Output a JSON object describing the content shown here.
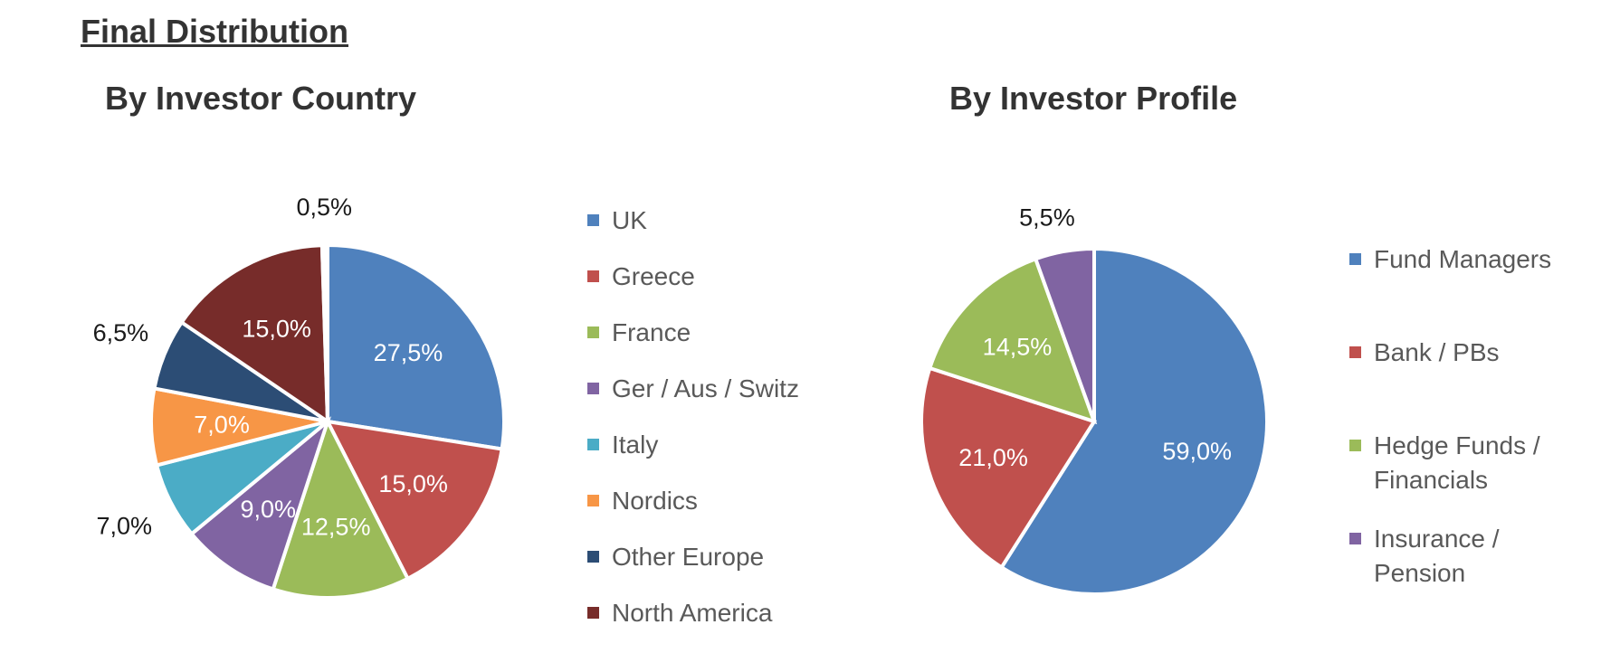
{
  "page": {
    "title": "Final Distribution"
  },
  "chart_data": [
    {
      "type": "pie",
      "title": "By Investor Country",
      "categories": [
        "UK",
        "Greece",
        "France",
        "Ger / Aus / Switz",
        "Italy",
        "Nordics",
        "Other Europe",
        "North America",
        ""
      ],
      "values": [
        27.5,
        15.0,
        12.5,
        9.0,
        7.0,
        7.0,
        6.5,
        15.0,
        0.5
      ],
      "labels": [
        "27,5%",
        "15,0%",
        "12,5%",
        "9,0%",
        "7,0%",
        "7,0%",
        "6,5%",
        "15,0%",
        "0,5%"
      ],
      "colors": [
        "#4F81BD",
        "#C0504D",
        "#9BBB59",
        "#8064A2",
        "#4BACC6",
        "#F79646",
        "#2C4D75",
        "#772C2A",
        "#FFFFFF"
      ],
      "legend": [
        "UK",
        "Greece",
        "France",
        "Ger / Aus / Switz",
        "Italy",
        "Nordics",
        "Other Europe",
        "North America"
      ],
      "legend_position": "right"
    },
    {
      "type": "pie",
      "title": "By Investor Profile",
      "categories": [
        "Fund Managers",
        "Bank / PBs",
        "Hedge Funds / Financials",
        "Insurance / Pension"
      ],
      "values": [
        59.0,
        21.0,
        14.5,
        5.5
      ],
      "labels": [
        "59,0%",
        "21,0%",
        "14,5%",
        "5,5%"
      ],
      "colors": [
        "#4F81BD",
        "#C0504D",
        "#9BBB59",
        "#8064A2"
      ],
      "legend": [
        [
          "Fund Managers"
        ],
        [
          "Bank / PBs"
        ],
        [
          "Hedge Funds /",
          "Financials"
        ],
        [
          "Insurance /",
          "Pension"
        ]
      ],
      "legend_position": "right"
    }
  ]
}
